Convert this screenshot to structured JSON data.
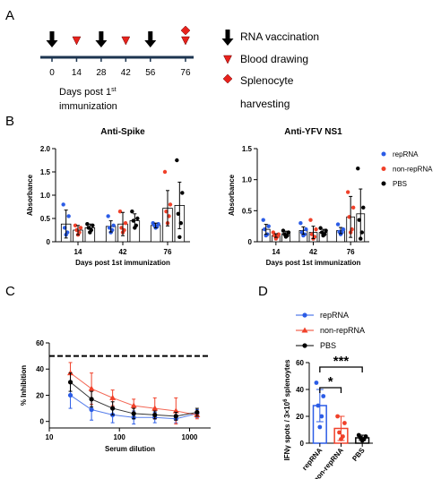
{
  "panels": [
    "A",
    "B",
    "C",
    "D"
  ],
  "timeline": {
    "ticks": [
      0,
      14,
      28,
      42,
      56,
      76
    ],
    "vaccination_days": [
      0,
      28,
      56
    ],
    "blood_days": [
      14,
      42,
      76
    ],
    "harvest_days": [
      76
    ],
    "legend": [
      "RNA vaccination",
      "Blood drawing",
      "Splenocyte",
      "harvesting"
    ],
    "xlabel": {
      "text": "Days post 1",
      "sup": "st",
      "line2": "immunization"
    },
    "color": "#e8221c"
  },
  "chart_data": [
    {
      "type": "bar",
      "title": "Anti-Spike",
      "ylabel": "Absorbance",
      "xlabel": "Days post 1st immunization",
      "categories": [
        "14",
        "42",
        "76"
      ],
      "ylim": [
        0,
        2
      ],
      "yticks": [
        0,
        0.5,
        {
          "value": 1,
          "label": "1.0"
        },
        1.5,
        {
          "value": 2,
          "label": "2.0"
        }
      ],
      "series": [
        {
          "color": "#2b5ce6",
          "values": [
            0.38,
            0.33,
            0.35
          ],
          "errors": [
            0.3,
            0.12,
            0.05
          ],
          "points": [
            [
              0.8,
              0.55,
              0.3,
              0.2,
              0.15
            ],
            [
              0.55,
              0.35,
              0.3,
              0.25,
              0.2
            ],
            [
              0.4,
              0.38,
              0.35,
              0.32,
              0.3
            ]
          ]
        },
        {
          "color": "#f0412a",
          "values": [
            0.25,
            0.38,
            0.72
          ],
          "errors": [
            0.1,
            0.25,
            0.38
          ],
          "points": [
            [
              0.35,
              0.3,
              0.25,
              0.2,
              0.15
            ],
            [
              0.65,
              0.4,
              0.3,
              0.25,
              0.2
            ],
            [
              1.5,
              0.8,
              0.65,
              0.55,
              0.4
            ]
          ]
        },
        {
          "color": "#000000",
          "values": [
            0.3,
            0.45,
            0.78
          ],
          "errors": [
            0.08,
            0.15,
            0.5
          ],
          "points": [
            [
              0.38,
              0.35,
              0.3,
              0.25,
              0.2
            ],
            [
              0.65,
              0.5,
              0.45,
              0.35,
              0.3
            ],
            [
              1.75,
              1.05,
              0.6,
              0.4,
              0.1
            ]
          ]
        }
      ]
    },
    {
      "type": "bar",
      "title": "Anti-YFV NS1",
      "ylabel": "Absorbance",
      "xlabel": "Days post 1st immunization",
      "legend": "right",
      "categories": [
        "14",
        "42",
        "76"
      ],
      "ylim": [
        0,
        1.5
      ],
      "yticks": [
        0,
        0.5,
        {
          "value": 1,
          "label": "1.0"
        },
        1.5
      ],
      "series": [
        {
          "name": "repRNA",
          "color": "#2b5ce6",
          "values": [
            0.2,
            0.18,
            0.18
          ],
          "errors": [
            0.08,
            0.06,
            0.05
          ],
          "points": [
            [
              0.35,
              0.25,
              0.2,
              0.12,
              0.1
            ],
            [
              0.3,
              0.2,
              0.15,
              0.12,
              0.1
            ],
            [
              0.28,
              0.2,
              0.16,
              0.15,
              0.12
            ]
          ]
        },
        {
          "name": "non-repRNA",
          "color": "#f0412a",
          "values": [
            0.1,
            0.15,
            0.4
          ],
          "errors": [
            0.03,
            0.1,
            0.33
          ],
          "points": [
            [
              0.15,
              0.12,
              0.1,
              0.08,
              0.05
            ],
            [
              0.35,
              0.2,
              0.12,
              0.08,
              0.05
            ],
            [
              0.8,
              0.55,
              0.4,
              0.2,
              0.15
            ]
          ]
        },
        {
          "name": "PBS",
          "color": "#000000",
          "values": [
            0.13,
            0.15,
            0.45
          ],
          "errors": [
            0.04,
            0.05,
            0.4
          ],
          "points": [
            [
              0.18,
              0.15,
              0.12,
              0.1,
              0.08
            ],
            [
              0.22,
              0.18,
              0.15,
              0.12,
              0.1
            ],
            [
              1.18,
              0.55,
              0.35,
              0.15,
              0.05
            ]
          ]
        }
      ]
    },
    {
      "type": "line",
      "ylabel": "% Inhibition",
      "xlabel": "Serum dilution",
      "xscale": "log",
      "legend": "upper right",
      "reference_line": 50,
      "x": [
        20,
        40,
        80,
        160,
        320,
        640,
        1280
      ],
      "xlim": [
        10,
        2000
      ],
      "xticks": [
        10,
        100,
        1000
      ],
      "ylim": [
        -5,
        60
      ],
      "yticks": [
        0,
        20,
        40,
        60
      ],
      "series": [
        {
          "name": "repRNA",
          "color": "#2b5ce6",
          "marker": "circle",
          "values": [
            20,
            9,
            5,
            3,
            3,
            2,
            6
          ],
          "errors": [
            10,
            8,
            6,
            5,
            4,
            3,
            3
          ]
        },
        {
          "name": "non-repRNA",
          "color": "#f0412a",
          "marker": "triangle",
          "values": [
            37,
            25,
            18,
            12,
            10,
            8,
            5
          ],
          "errors": [
            8,
            12,
            6,
            5,
            8,
            10,
            3
          ]
        },
        {
          "name": "PBS",
          "color": "#000000",
          "marker": "circle",
          "values": [
            30,
            17,
            10,
            6,
            5,
            4,
            7
          ],
          "errors": [
            7,
            6,
            5,
            4,
            3,
            3,
            3
          ]
        }
      ]
    },
    {
      "type": "bar",
      "ylabel": {
        "text": "IFNγ spots / 3×10",
        "sup": "6",
        "rest": " splenoytes"
      },
      "categories": [
        "repRNA",
        "non-repRNA",
        "PBS"
      ],
      "colors": [
        "#2b5ce6",
        "#f0412a",
        "#000000"
      ],
      "values": [
        28,
        11,
        4
      ],
      "errors": [
        12,
        9,
        2
      ],
      "points": [
        [
          45,
          35,
          28,
          20,
          12
        ],
        [
          20,
          15,
          8,
          5,
          3
        ],
        [
          6,
          5,
          4,
          3,
          2
        ]
      ],
      "ylim": [
        0,
        60
      ],
      "yticks": [
        0,
        20,
        40,
        60
      ],
      "annotations": [
        "*",
        "***"
      ]
    }
  ]
}
